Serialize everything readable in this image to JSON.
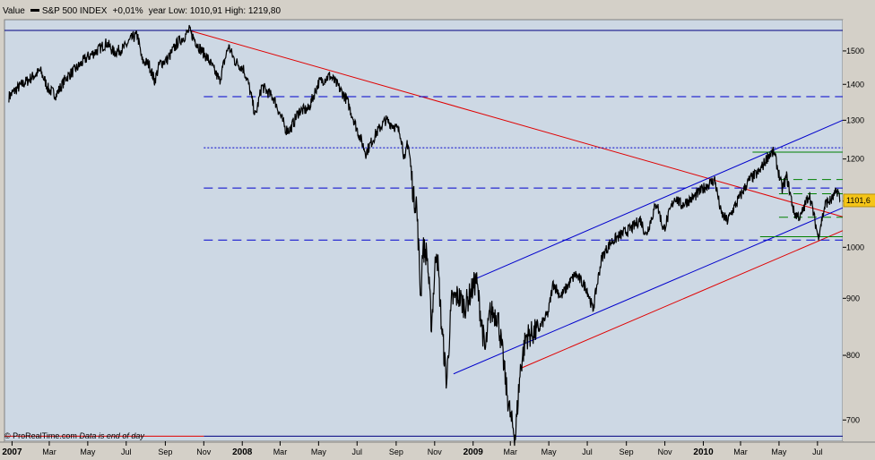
{
  "header": {
    "value_label": "Value",
    "series_name": "S&P 500 INDEX",
    "change": "+0,01%",
    "year_range": "year Low: 1010,91 High: 1219,80"
  },
  "footer": {
    "brand": "ProRealTime.com",
    "note": "Data is end of day"
  },
  "colors": {
    "plot_bg": "#cdd8e4",
    "price": "#000000",
    "red_line": "#e00000",
    "blue_line": "#0000cc",
    "green_line": "#008000",
    "last_price_badge": "#f5c518"
  },
  "chart_data": {
    "type": "line",
    "title": "",
    "xlabel": "",
    "ylabel": "",
    "log_scale": true,
    "ylim": [
      670,
      1600
    ],
    "y_ticks": [
      700,
      800,
      900,
      1000,
      1100,
      1200,
      1300,
      1400,
      1500
    ],
    "last_value_label": "1101,6",
    "x_ticks": [
      {
        "date": "2007-01-01",
        "label": "2007",
        "bold": true
      },
      {
        "date": "2007-03-01",
        "label": "Mar"
      },
      {
        "date": "2007-05-01",
        "label": "May"
      },
      {
        "date": "2007-07-01",
        "label": "Jul"
      },
      {
        "date": "2007-09-01",
        "label": "Sep"
      },
      {
        "date": "2007-11-01",
        "label": "Nov"
      },
      {
        "date": "2008-01-01",
        "label": "2008",
        "bold": true
      },
      {
        "date": "2008-03-01",
        "label": "Mar"
      },
      {
        "date": "2008-05-01",
        "label": "May"
      },
      {
        "date": "2008-07-01",
        "label": "Jul"
      },
      {
        "date": "2008-09-01",
        "label": "Sep"
      },
      {
        "date": "2008-11-01",
        "label": "Nov"
      },
      {
        "date": "2009-01-01",
        "label": "2009",
        "bold": true
      },
      {
        "date": "2009-03-01",
        "label": "Mar"
      },
      {
        "date": "2009-05-01",
        "label": "May"
      },
      {
        "date": "2009-07-01",
        "label": "Jul"
      },
      {
        "date": "2009-09-01",
        "label": "Sep"
      },
      {
        "date": "2009-11-01",
        "label": "Nov"
      },
      {
        "date": "2010-01-01",
        "label": "2010",
        "bold": true
      },
      {
        "date": "2010-03-01",
        "label": "Mar"
      },
      {
        "date": "2010-05-01",
        "label": "May"
      },
      {
        "date": "2010-07-01",
        "label": "Jul"
      }
    ],
    "xlim": [
      "2006-12-20",
      "2010-08-10"
    ],
    "series": [
      {
        "name": "S&P 500 INDEX",
        "points": [
          [
            "2006-12-27",
            1365
          ],
          [
            "2007-01-10",
            1390
          ],
          [
            "2007-01-25",
            1410
          ],
          [
            "2007-02-15",
            1440
          ],
          [
            "2007-02-28",
            1385
          ],
          [
            "2007-03-12",
            1370
          ],
          [
            "2007-03-28",
            1420
          ],
          [
            "2007-04-15",
            1450
          ],
          [
            "2007-04-30",
            1480
          ],
          [
            "2007-05-15",
            1500
          ],
          [
            "2007-05-31",
            1525
          ],
          [
            "2007-06-12",
            1495
          ],
          [
            "2007-06-28",
            1510
          ],
          [
            "2007-07-10",
            1540
          ],
          [
            "2007-07-19",
            1550
          ],
          [
            "2007-07-26",
            1470
          ],
          [
            "2007-08-06",
            1460
          ],
          [
            "2007-08-15",
            1410
          ],
          [
            "2007-08-23",
            1460
          ],
          [
            "2007-09-05",
            1475
          ],
          [
            "2007-09-20",
            1525
          ],
          [
            "2007-10-01",
            1545
          ],
          [
            "2007-10-09",
            1565
          ],
          [
            "2007-10-25",
            1510
          ],
          [
            "2007-11-08",
            1475
          ],
          [
            "2007-11-26",
            1410
          ],
          [
            "2007-12-10",
            1515
          ],
          [
            "2007-12-20",
            1470
          ],
          [
            "2008-01-03",
            1445
          ],
          [
            "2008-01-11",
            1400
          ],
          [
            "2008-01-22",
            1310
          ],
          [
            "2008-02-01",
            1395
          ],
          [
            "2008-02-20",
            1360
          ],
          [
            "2008-03-10",
            1275
          ],
          [
            "2008-03-17",
            1275
          ],
          [
            "2008-03-31",
            1325
          ],
          [
            "2008-04-15",
            1330
          ],
          [
            "2008-05-01",
            1405
          ],
          [
            "2008-05-19",
            1425
          ],
          [
            "2008-05-30",
            1400
          ],
          [
            "2008-06-15",
            1355
          ],
          [
            "2008-06-30",
            1280
          ],
          [
            "2008-07-15",
            1215
          ],
          [
            "2008-07-31",
            1265
          ],
          [
            "2008-08-15",
            1300
          ],
          [
            "2008-08-29",
            1285
          ],
          [
            "2008-09-08",
            1265
          ],
          [
            "2008-09-15",
            1190
          ],
          [
            "2008-09-19",
            1255
          ],
          [
            "2008-09-29",
            1105
          ],
          [
            "2008-10-03",
            1100
          ],
          [
            "2008-10-10",
            900
          ],
          [
            "2008-10-13",
            1000
          ],
          [
            "2008-10-20",
            985
          ],
          [
            "2008-10-27",
            850
          ],
          [
            "2008-11-04",
            1005
          ],
          [
            "2008-11-12",
            850
          ],
          [
            "2008-11-20",
            755
          ],
          [
            "2008-11-28",
            895
          ],
          [
            "2008-12-08",
            905
          ],
          [
            "2008-12-19",
            885
          ],
          [
            "2009-01-06",
            935
          ],
          [
            "2009-01-20",
            805
          ],
          [
            "2009-01-28",
            875
          ],
          [
            "2009-02-09",
            870
          ],
          [
            "2009-02-23",
            745
          ],
          [
            "2009-03-02",
            700
          ],
          [
            "2009-03-09",
            677
          ],
          [
            "2009-03-17",
            778
          ],
          [
            "2009-03-26",
            832
          ],
          [
            "2009-04-14",
            842
          ],
          [
            "2009-04-30",
            873
          ],
          [
            "2009-05-08",
            929
          ],
          [
            "2009-05-20",
            903
          ],
          [
            "2009-06-12",
            946
          ],
          [
            "2009-06-30",
            919
          ],
          [
            "2009-07-10",
            879
          ],
          [
            "2009-07-24",
            979
          ],
          [
            "2009-08-07",
            1010
          ],
          [
            "2009-08-25",
            1028
          ],
          [
            "2009-09-11",
            1042
          ],
          [
            "2009-09-23",
            1060
          ],
          [
            "2009-10-02",
            1025
          ],
          [
            "2009-10-19",
            1097
          ],
          [
            "2009-10-30",
            1036
          ],
          [
            "2009-11-17",
            1110
          ],
          [
            "2009-11-27",
            1091
          ],
          [
            "2009-12-15",
            1107
          ],
          [
            "2010-01-04",
            1133
          ],
          [
            "2010-01-19",
            1150
          ],
          [
            "2010-01-29",
            1073
          ],
          [
            "2010-02-08",
            1056
          ],
          [
            "2010-02-25",
            1102
          ],
          [
            "2010-03-15",
            1150
          ],
          [
            "2010-03-31",
            1169
          ],
          [
            "2010-04-15",
            1211
          ],
          [
            "2010-04-23",
            1217
          ],
          [
            "2010-05-06",
            1128
          ],
          [
            "2010-05-13",
            1157
          ],
          [
            "2010-05-25",
            1073
          ],
          [
            "2010-06-04",
            1064
          ],
          [
            "2010-06-18",
            1117
          ],
          [
            "2010-07-02",
            1022
          ],
          [
            "2010-07-14",
            1096
          ],
          [
            "2010-07-23",
            1102
          ],
          [
            "2010-08-02",
            1125
          ],
          [
            "2010-08-06",
            1101.6
          ]
        ]
      }
    ],
    "overlays": [
      {
        "kind": "trend",
        "color": "red",
        "from": [
          "2007-10-09",
          1565
        ],
        "to": [
          "2010-08-10",
          1065
        ]
      },
      {
        "kind": "trend",
        "color": "red",
        "from": [
          "2009-03-20",
          780
        ],
        "to": [
          "2010-08-10",
          1035
        ]
      },
      {
        "kind": "trend",
        "color": "blue",
        "from": [
          "2009-01-01",
          935
        ],
        "to": [
          "2010-08-10",
          1300
        ]
      },
      {
        "kind": "trend",
        "color": "blue",
        "from": [
          "2008-12-01",
          770
        ],
        "to": [
          "2010-08-10",
          1085
        ]
      },
      {
        "kind": "hline",
        "color": "green",
        "style": "solid",
        "y": 1565,
        "from": "2006-12-20",
        "to": "2010-08-10"
      },
      {
        "kind": "hline",
        "color": "navy",
        "style": "solid",
        "y": 1565,
        "from": "2006-12-20",
        "to": "2010-08-10"
      },
      {
        "kind": "hline",
        "color": "blue",
        "style": "dashed",
        "y": 1365,
        "from": "2007-11-01",
        "to": "2010-08-10"
      },
      {
        "kind": "hline",
        "color": "blue",
        "style": "dotted",
        "y": 1228,
        "from": "2007-11-01",
        "to": "2010-08-10"
      },
      {
        "kind": "hline",
        "color": "blue",
        "style": "dashed",
        "y": 1130,
        "from": "2007-11-01",
        "to": "2010-08-10"
      },
      {
        "kind": "hline",
        "color": "blue",
        "style": "dashed",
        "y": 1015,
        "from": "2007-11-01",
        "to": "2010-08-10"
      },
      {
        "kind": "hline",
        "color": "navy",
        "style": "solid",
        "y": 677,
        "from": "2007-11-01",
        "to": "2010-08-10"
      },
      {
        "kind": "hline",
        "color": "red",
        "style": "solid",
        "y": 677,
        "from": "2006-12-20",
        "to": "2007-11-01"
      },
      {
        "kind": "hline",
        "color": "green",
        "style": "solid",
        "y": 1217,
        "from": "2010-03-20",
        "to": "2010-08-10"
      },
      {
        "kind": "hline",
        "color": "green",
        "style": "solid",
        "y": 1022,
        "from": "2010-04-01",
        "to": "2010-08-10"
      },
      {
        "kind": "hline",
        "color": "green",
        "style": "dashed",
        "y": 1150,
        "from": "2010-05-01",
        "to": "2010-08-10"
      },
      {
        "kind": "hline",
        "color": "green",
        "style": "dashed",
        "y": 1117,
        "from": "2010-05-01",
        "to": "2010-08-10"
      },
      {
        "kind": "hline",
        "color": "green",
        "style": "dashed",
        "y": 1064,
        "from": "2010-05-01",
        "to": "2010-08-10"
      }
    ]
  }
}
